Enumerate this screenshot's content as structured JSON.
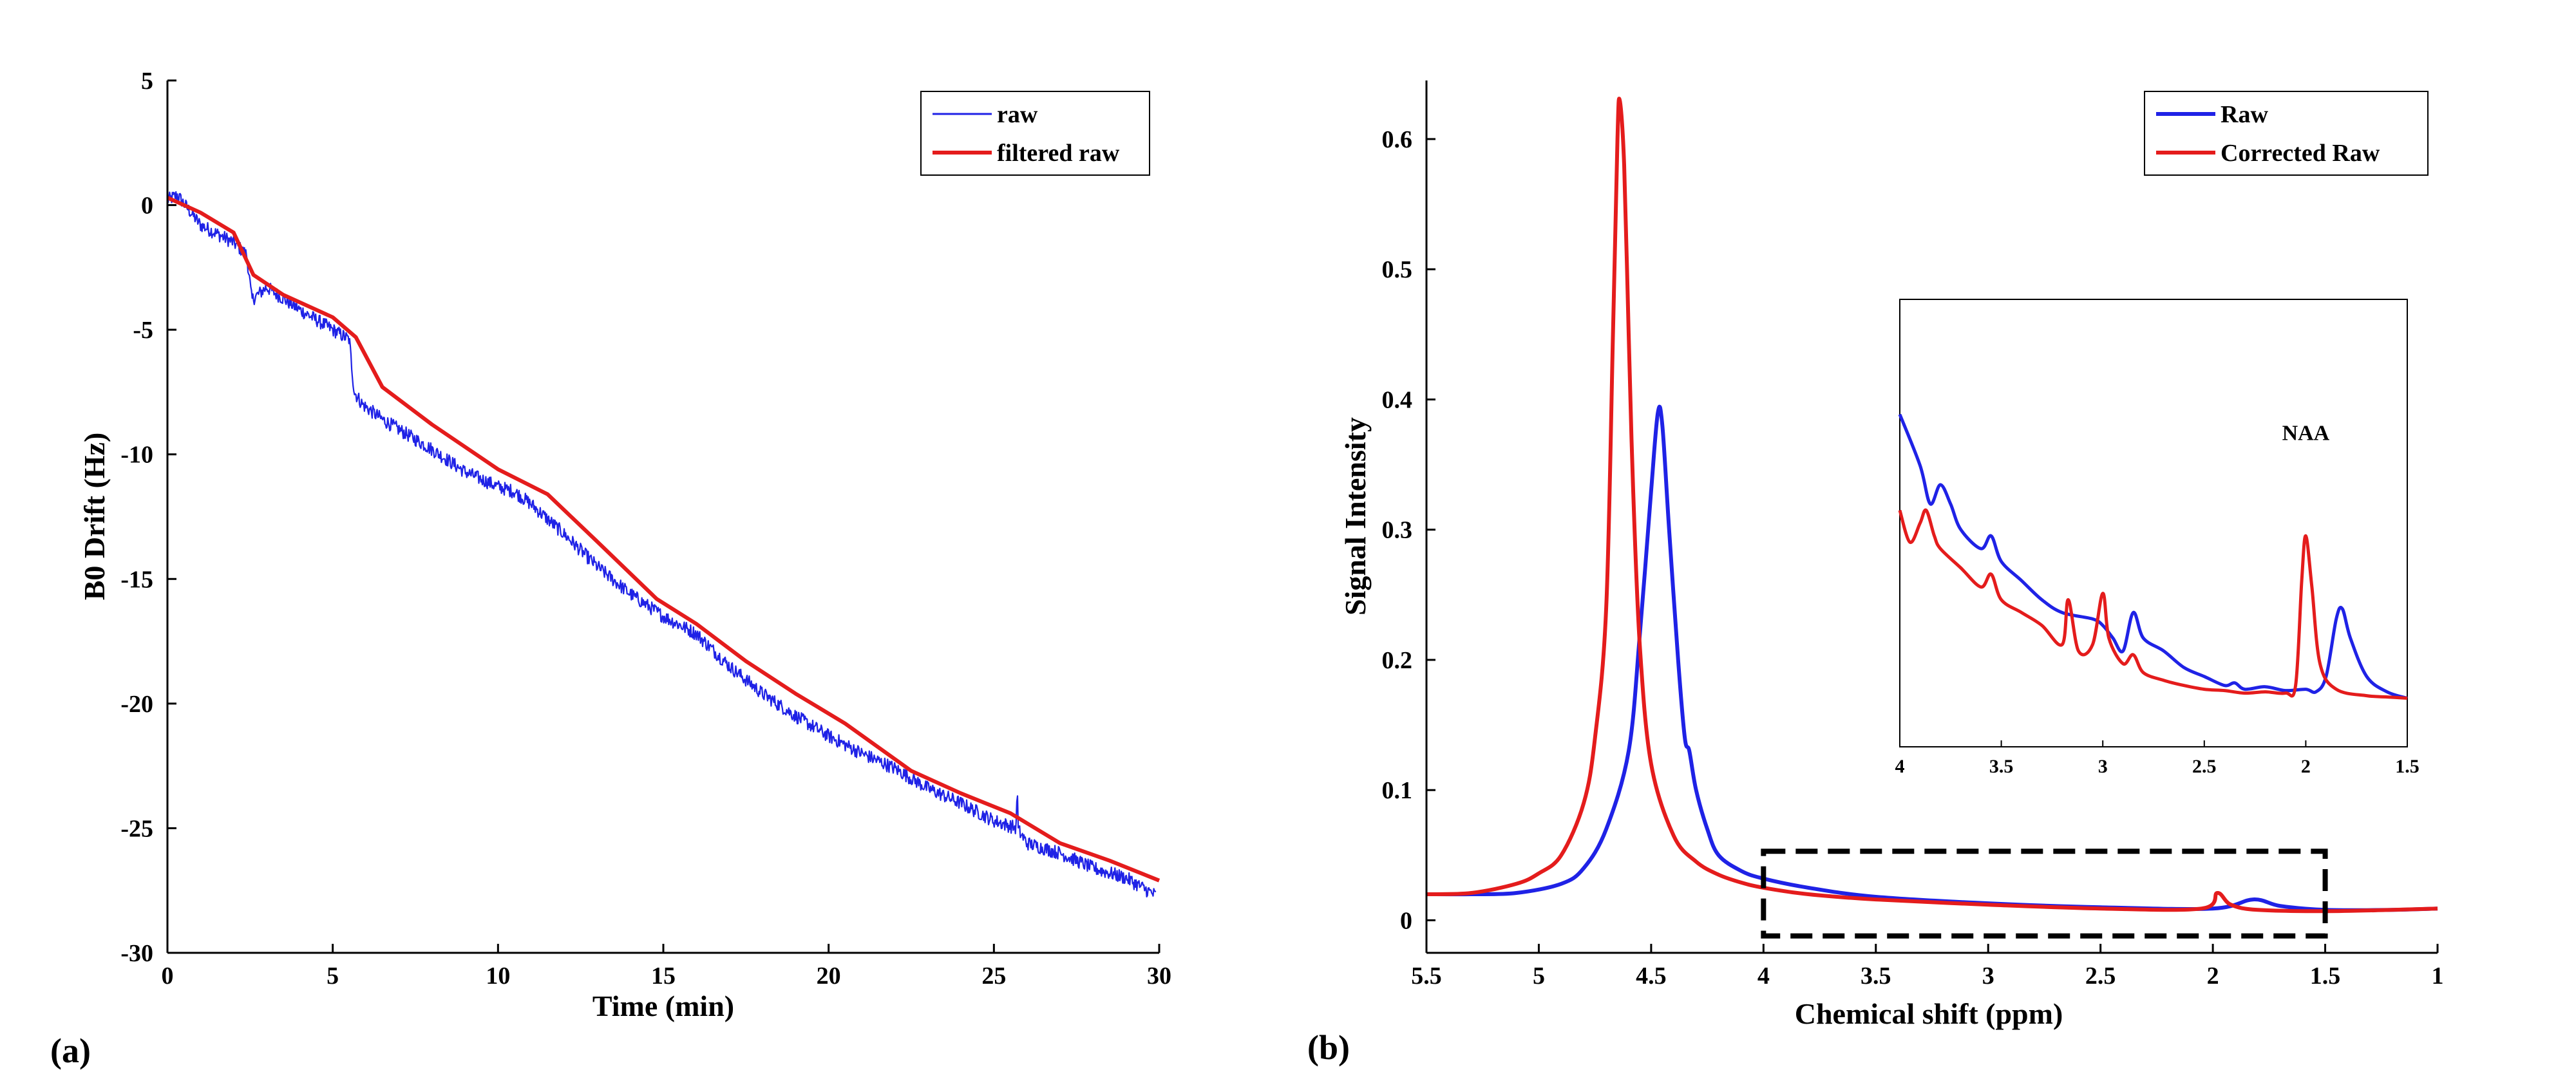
{
  "figure": {
    "panels": [
      {
        "label": "(a)"
      },
      {
        "label": "(b)"
      }
    ]
  },
  "chart_data": [
    {
      "type": "line",
      "panel": "(a)",
      "title": "",
      "xlabel": "Time (min)",
      "ylabel": "B0 Drift (Hz)",
      "xlim": [
        0,
        30
      ],
      "ylim": [
        -30,
        5
      ],
      "xticks": [
        0,
        5,
        10,
        15,
        20,
        25,
        30
      ],
      "yticks": [
        -30,
        -25,
        -20,
        -15,
        -10,
        -5,
        0,
        5
      ],
      "legend": "top-right",
      "series": [
        {
          "name": "raw",
          "color": "#1f22e6",
          "style": "thin-noisy",
          "x": [
            0,
            0.3,
            1,
            2,
            2.4,
            2.55,
            3,
            4,
            5,
            5.5,
            5.65,
            5.9,
            6.5,
            7,
            8,
            9,
            10,
            10.5,
            11,
            12,
            13,
            14,
            15,
            16,
            17,
            18,
            19,
            20,
            21,
            22,
            23,
            24,
            25,
            25.7,
            26,
            27,
            28,
            29,
            29.9
          ],
          "values": [
            0.2,
            0.4,
            -0.8,
            -1.5,
            -2.0,
            -3.8,
            -3.3,
            -4.2,
            -5.0,
            -5.4,
            -7.5,
            -8.0,
            -8.6,
            -9.0,
            -9.8,
            -10.7,
            -11.3,
            -11.5,
            -12.0,
            -13.2,
            -14.5,
            -15.6,
            -16.5,
            -17.2,
            -18.5,
            -19.6,
            -20.5,
            -21.3,
            -22.0,
            -22.6,
            -23.4,
            -24.0,
            -24.7,
            -25.0,
            -25.6,
            -26.0,
            -26.6,
            -27.0,
            -27.7
          ]
        },
        {
          "name": "filtered raw",
          "color": "#e41c1c",
          "style": "thick",
          "x": [
            0,
            1,
            2,
            2.6,
            3.5,
            5,
            5.7,
            6.5,
            8,
            10,
            11.5,
            13,
            14.8,
            16,
            17.5,
            19,
            20.5,
            22.5,
            24,
            25.5,
            27,
            28.5,
            30
          ],
          "values": [
            0.3,
            -0.3,
            -1.1,
            -2.8,
            -3.6,
            -4.5,
            -5.3,
            -7.3,
            -8.8,
            -10.6,
            -11.6,
            -13.5,
            -15.8,
            -16.8,
            -18.3,
            -19.6,
            -20.8,
            -22.7,
            -23.6,
            -24.4,
            -25.6,
            -26.3,
            -27.1
          ]
        }
      ]
    },
    {
      "type": "line",
      "panel": "(b)",
      "title": "",
      "xlabel": "Chemical shift (ppm)",
      "ylabel": "Signal Intensity",
      "xlim": [
        5.5,
        1
      ],
      "ylim": [
        -0.025,
        0.645
      ],
      "xticks": [
        5.5,
        5,
        4.5,
        4,
        3.5,
        3,
        2.5,
        2,
        1.5,
        1
      ],
      "yticks": [
        0,
        0.1,
        0.2,
        0.3,
        0.4,
        0.5,
        0.6
      ],
      "legend": "top-right",
      "series": [
        {
          "name": "Raw",
          "color": "#1f22e6",
          "x": [
            5.5,
            5.3,
            5.1,
            4.9,
            4.8,
            4.7,
            4.6,
            4.55,
            4.5,
            4.47,
            4.45,
            4.42,
            4.38,
            4.35,
            4.33,
            4.3,
            4.25,
            4.2,
            4.1,
            4.0,
            3.8,
            3.5,
            3.0,
            2.5,
            2.0,
            1.82,
            1.7,
            1.5,
            1.2,
            1.0
          ],
          "values": [
            0.02,
            0.02,
            0.021,
            0.028,
            0.04,
            0.07,
            0.13,
            0.22,
            0.33,
            0.39,
            0.38,
            0.3,
            0.2,
            0.14,
            0.13,
            0.1,
            0.07,
            0.05,
            0.038,
            0.032,
            0.025,
            0.018,
            0.013,
            0.01,
            0.009,
            0.016,
            0.011,
            0.008,
            0.008,
            0.009
          ]
        },
        {
          "name": "Corrected Raw",
          "color": "#e41c1c",
          "x": [
            5.5,
            5.3,
            5.1,
            5.0,
            4.9,
            4.8,
            4.75,
            4.7,
            4.67,
            4.65,
            4.64,
            4.62,
            4.6,
            4.58,
            4.55,
            4.5,
            4.4,
            4.3,
            4.2,
            4.1,
            4.0,
            3.8,
            3.5,
            3.0,
            2.5,
            2.05,
            1.98,
            1.92,
            1.8,
            1.5,
            1.2,
            1.0
          ],
          "values": [
            0.02,
            0.021,
            0.028,
            0.036,
            0.05,
            0.09,
            0.14,
            0.24,
            0.45,
            0.6,
            0.63,
            0.58,
            0.45,
            0.33,
            0.21,
            0.12,
            0.065,
            0.045,
            0.035,
            0.029,
            0.025,
            0.02,
            0.016,
            0.012,
            0.009,
            0.009,
            0.021,
            0.012,
            0.008,
            0.007,
            0.008,
            0.009
          ]
        }
      ],
      "zoom_box": {
        "x_range": [
          4.0,
          1.5
        ],
        "y_range": [
          -0.012,
          0.053
        ],
        "style": "dashed"
      },
      "inset": {
        "x_range": [
          4,
          1.5
        ],
        "y_range": [
          0.005,
          0.04
        ],
        "xticks": [
          4,
          3.5,
          3,
          2.5,
          2,
          1.5
        ],
        "annotation": {
          "text": "NAA",
          "x": 2.0,
          "y": 0.029
        },
        "series": [
          {
            "name": "Raw",
            "color": "#1f22e6",
            "x": [
              4.0,
              3.9,
              3.85,
              3.8,
              3.75,
              3.7,
              3.6,
              3.55,
              3.5,
              3.4,
              3.3,
              3.2,
              3.05,
              3.0,
              2.95,
              2.9,
              2.85,
              2.8,
              2.7,
              2.6,
              2.5,
              2.4,
              2.35,
              2.3,
              2.2,
              2.1,
              2.0,
              1.95,
              1.9,
              1.85,
              1.82,
              1.78,
              1.7,
              1.6,
              1.5
            ],
            "values": [
              0.031,
              0.027,
              0.024,
              0.0255,
              0.024,
              0.022,
              0.0205,
              0.0215,
              0.0195,
              0.018,
              0.0165,
              0.0155,
              0.015,
              0.0145,
              0.0135,
              0.0125,
              0.0155,
              0.0135,
              0.0125,
              0.0112,
              0.0105,
              0.0098,
              0.01,
              0.0095,
              0.0097,
              0.0094,
              0.0095,
              0.0093,
              0.0105,
              0.015,
              0.0158,
              0.0135,
              0.0105,
              0.0093,
              0.0088
            ]
          },
          {
            "name": "Corrected Raw",
            "color": "#e41c1c",
            "x": [
              4.0,
              3.95,
              3.9,
              3.87,
              3.83,
              3.8,
              3.7,
              3.6,
              3.55,
              3.5,
              3.4,
              3.3,
              3.2,
              3.17,
              3.12,
              3.05,
              3.0,
              2.97,
              2.9,
              2.85,
              2.8,
              2.7,
              2.6,
              2.5,
              2.4,
              2.3,
              2.2,
              2.1,
              2.05,
              2.02,
              2.0,
              1.97,
              1.93,
              1.85,
              1.7,
              1.6,
              1.5
            ],
            "values": [
              0.0235,
              0.021,
              0.0225,
              0.0235,
              0.0215,
              0.0205,
              0.019,
              0.0175,
              0.0185,
              0.0165,
              0.0155,
              0.0145,
              0.013,
              0.0165,
              0.0125,
              0.013,
              0.017,
              0.0135,
              0.0115,
              0.0122,
              0.0108,
              0.0102,
              0.0098,
              0.0095,
              0.0094,
              0.0092,
              0.0093,
              0.0092,
              0.0098,
              0.018,
              0.0215,
              0.0175,
              0.0115,
              0.0095,
              0.009,
              0.0089,
              0.0088
            ]
          }
        ]
      }
    }
  ]
}
